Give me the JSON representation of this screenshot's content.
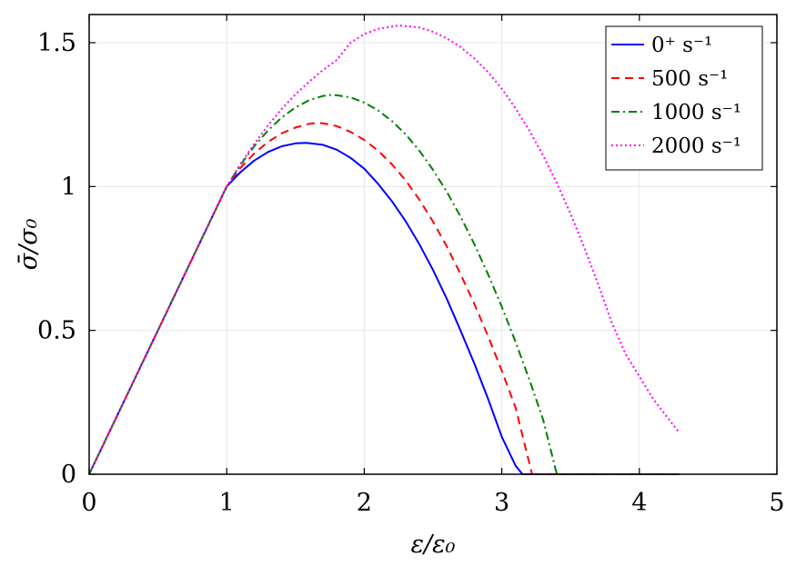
{
  "chart_data": {
    "type": "line",
    "xlabel": "ε/ε₀",
    "ylabel": "σ̄/σ₀",
    "xlim": [
      0,
      5
    ],
    "ylim": [
      0,
      1.6
    ],
    "xticks": [
      0,
      1,
      2,
      3,
      4,
      5
    ],
    "xtick_labels": [
      "0",
      "1",
      "2",
      "3",
      "4",
      "5"
    ],
    "yticks": [
      0,
      0.5,
      1,
      1.5
    ],
    "ytick_labels": [
      "0",
      "0.5",
      "1",
      "1.5"
    ],
    "grid": true,
    "legend_position": "top-right",
    "series": [
      {
        "name": "0⁺ s⁻¹",
        "color": "#0000ff",
        "dash": "solid",
        "x": [
          0,
          1,
          1.1,
          1.2,
          1.3,
          1.4,
          1.5,
          1.58,
          1.7,
          1.8,
          1.9,
          2.0,
          2.1,
          2.2,
          2.3,
          2.4,
          2.5,
          2.6,
          2.7,
          2.8,
          2.9,
          3.0,
          3.1,
          3.15,
          3.2,
          3.4,
          3.6,
          3.8,
          4.0,
          4.29
        ],
        "y": [
          0,
          1.0,
          1.05,
          1.09,
          1.12,
          1.14,
          1.15,
          1.152,
          1.145,
          1.128,
          1.1,
          1.062,
          1.01,
          0.95,
          0.88,
          0.8,
          0.71,
          0.61,
          0.5,
          0.385,
          0.262,
          0.13,
          0.03,
          0,
          0,
          0,
          0,
          0,
          0,
          0
        ]
      },
      {
        "name": "500 s⁻¹",
        "color": "#ff0000",
        "dash": "dashed",
        "x": [
          0,
          1,
          1.1,
          1.2,
          1.3,
          1.4,
          1.5,
          1.6,
          1.65,
          1.7,
          1.8,
          1.9,
          2.0,
          2.1,
          2.2,
          2.3,
          2.4,
          2.5,
          2.6,
          2.7,
          2.8,
          2.9,
          3.0,
          3.1,
          3.22,
          3.4,
          3.6,
          3.8,
          4.0,
          4.29
        ],
        "y": [
          0,
          1.0,
          1.065,
          1.115,
          1.155,
          1.185,
          1.205,
          1.218,
          1.221,
          1.22,
          1.21,
          1.19,
          1.162,
          1.125,
          1.078,
          1.022,
          0.955,
          0.878,
          0.792,
          0.696,
          0.592,
          0.48,
          0.36,
          0.232,
          0,
          0,
          0,
          0,
          0,
          0
        ]
      },
      {
        "name": "1000 s⁻¹",
        "color": "#008000",
        "dash": "dashdot",
        "x": [
          0,
          1,
          1.1,
          1.2,
          1.3,
          1.4,
          1.5,
          1.6,
          1.7,
          1.75,
          1.8,
          1.9,
          2.0,
          2.1,
          2.2,
          2.3,
          2.4,
          2.5,
          2.6,
          2.7,
          2.8,
          2.9,
          3.0,
          3.1,
          3.2,
          3.3,
          3.4,
          3.6,
          3.8,
          4.0,
          4.29
        ],
        "y": [
          0,
          1.0,
          1.075,
          1.14,
          1.195,
          1.24,
          1.275,
          1.3,
          1.315,
          1.318,
          1.317,
          1.31,
          1.292,
          1.265,
          1.228,
          1.182,
          1.125,
          1.058,
          0.982,
          0.896,
          0.8,
          0.695,
          0.582,
          0.46,
          0.33,
          0.19,
          0,
          0,
          0,
          0,
          0
        ]
      },
      {
        "name": "2000 s⁻¹",
        "color": "#ff00ff",
        "dash": "dotted",
        "x": [
          0,
          1,
          1.1,
          1.2,
          1.3,
          1.4,
          1.5,
          1.6,
          1.7,
          1.8,
          1.9,
          2.0,
          2.1,
          2.25,
          2.4,
          2.5,
          2.6,
          2.7,
          2.8,
          2.9,
          3.0,
          3.1,
          3.2,
          3.3,
          3.4,
          3.5,
          3.6,
          3.7,
          3.8,
          3.9,
          4.0,
          4.1,
          4.2,
          4.29
        ],
        "y": [
          0,
          1.0,
          1.078,
          1.148,
          1.212,
          1.27,
          1.32,
          1.365,
          1.405,
          1.44,
          1.5,
          1.53,
          1.548,
          1.56,
          1.553,
          1.538,
          1.515,
          1.485,
          1.445,
          1.398,
          1.34,
          1.272,
          1.195,
          1.108,
          1.012,
          0.905,
          0.788,
          0.662,
          0.526,
          0.418,
          0.34,
          0.262,
          0.2,
          0.145
        ]
      }
    ]
  }
}
